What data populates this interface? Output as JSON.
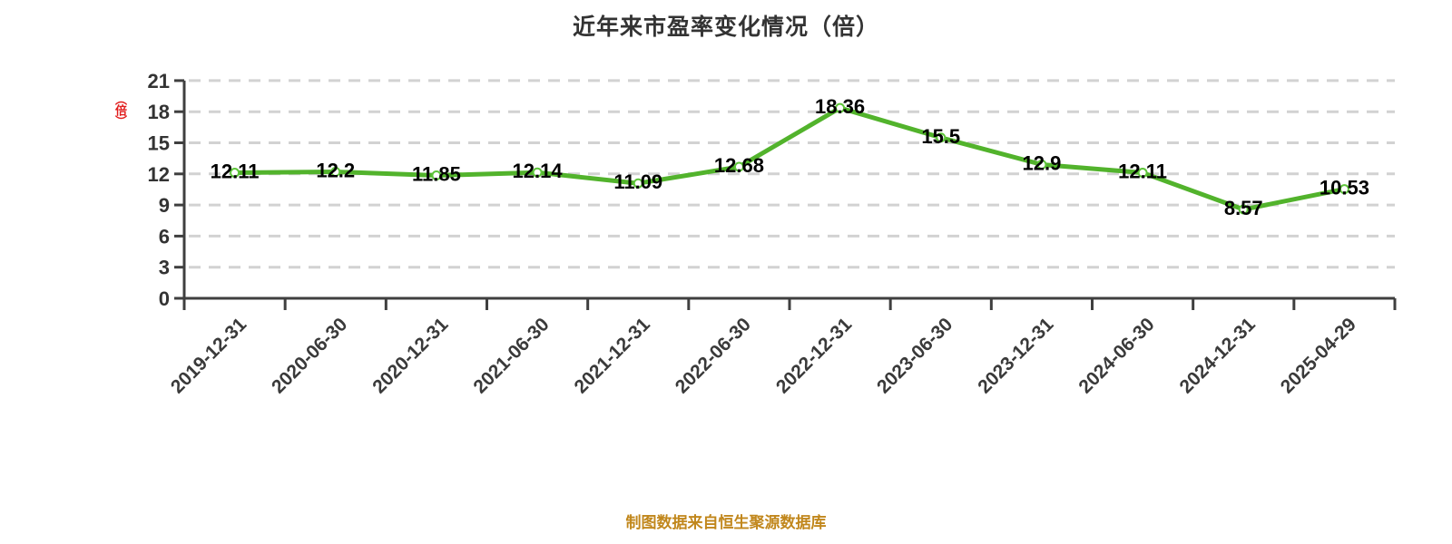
{
  "title": "近年来市盈率变化情况（倍）",
  "y_axis_unit": "（倍）",
  "footer": "制图数据来自恒生聚源数据库",
  "chart_data": {
    "type": "line",
    "title": "近年来市盈率变化情况（倍）",
    "categories": [
      "2019-12-31",
      "2020-06-30",
      "2020-12-31",
      "2021-06-30",
      "2021-12-31",
      "2022-06-30",
      "2022-12-31",
      "2023-06-30",
      "2023-12-31",
      "2024-06-30",
      "2024-12-31",
      "2025-04-29"
    ],
    "values": [
      12.11,
      12.2,
      11.85,
      12.14,
      11.09,
      12.68,
      18.36,
      15.5,
      12.9,
      12.11,
      8.57,
      10.53
    ],
    "xlabel": "",
    "ylabel": "（倍）",
    "ylim": [
      0,
      21
    ],
    "y_ticks": [
      0,
      3,
      6,
      9,
      12,
      15,
      18,
      21
    ],
    "grid": "horizontal-dashed",
    "legend": "none",
    "marker": "white-circle",
    "data_labels": "above-point"
  },
  "colors": {
    "background": "#ffffff",
    "line": "#52b32c",
    "marker_fill": "#ffffff",
    "marker_stroke": "#5ec53a",
    "grid": "#d2d2d2",
    "axis": "#3f3f3f",
    "tick_text": "#333333",
    "data_label": "#000000",
    "title_text": "#333333",
    "unit_label": "#e11d1d",
    "footer_text": "#c1871c"
  }
}
